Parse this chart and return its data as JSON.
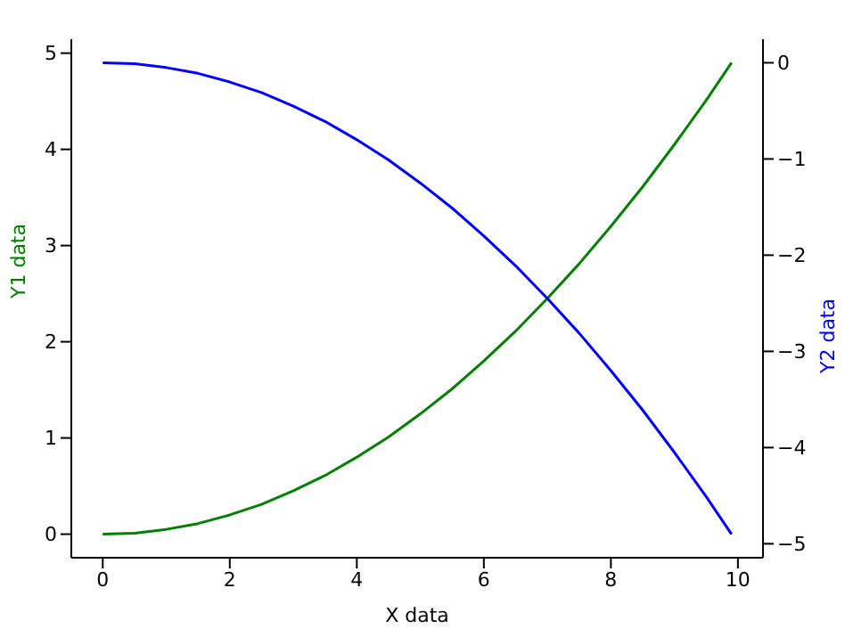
{
  "chart_data": {
    "type": "line",
    "xlabel": "X data",
    "ylabel": "Y1 data",
    "y2label": "Y2 data",
    "x": [
      0,
      0.5,
      1,
      1.5,
      2,
      2.5,
      3,
      3.5,
      4,
      4.5,
      5,
      5.5,
      6,
      6.5,
      7,
      7.5,
      8,
      8.5,
      9,
      9.5,
      9.9
    ],
    "series": [
      {
        "color": "#008000",
        "values": [
          0,
          0.01,
          0.05,
          0.11,
          0.2,
          0.31,
          0.45,
          0.61,
          0.8,
          1.01,
          1.25,
          1.51,
          1.8,
          2.11,
          2.45,
          2.81,
          3.2,
          3.61,
          4.05,
          4.51,
          4.9
        ]
      },
      {
        "color": "#0000ff",
        "axis": "y2",
        "values": [
          0,
          -0.01,
          -0.05,
          -0.11,
          -0.2,
          -0.31,
          -0.45,
          -0.61,
          -0.8,
          -1.01,
          -1.25,
          -1.51,
          -1.8,
          -2.11,
          -2.45,
          -2.81,
          -3.2,
          -3.61,
          -4.05,
          -4.51,
          -4.9
        ]
      }
    ],
    "xlim": [
      -0.495,
      10.395
    ],
    "xticks": [
      0,
      2,
      4,
      6,
      8,
      10
    ],
    "ylim": [
      -0.245,
      5.145
    ],
    "yticks": [
      0,
      1,
      2,
      3,
      4,
      5
    ],
    "y2lim": [
      -5.145,
      0.245
    ],
    "y2ticks": [
      {
        "value": -5,
        "label": "−5"
      },
      {
        "value": -4,
        "label": "−4"
      },
      {
        "value": -3,
        "label": "−3"
      },
      {
        "value": -2,
        "label": "−2"
      },
      {
        "value": -1,
        "label": "−1"
      },
      0
    ],
    "line_style": "solid",
    "marker": "none"
  }
}
